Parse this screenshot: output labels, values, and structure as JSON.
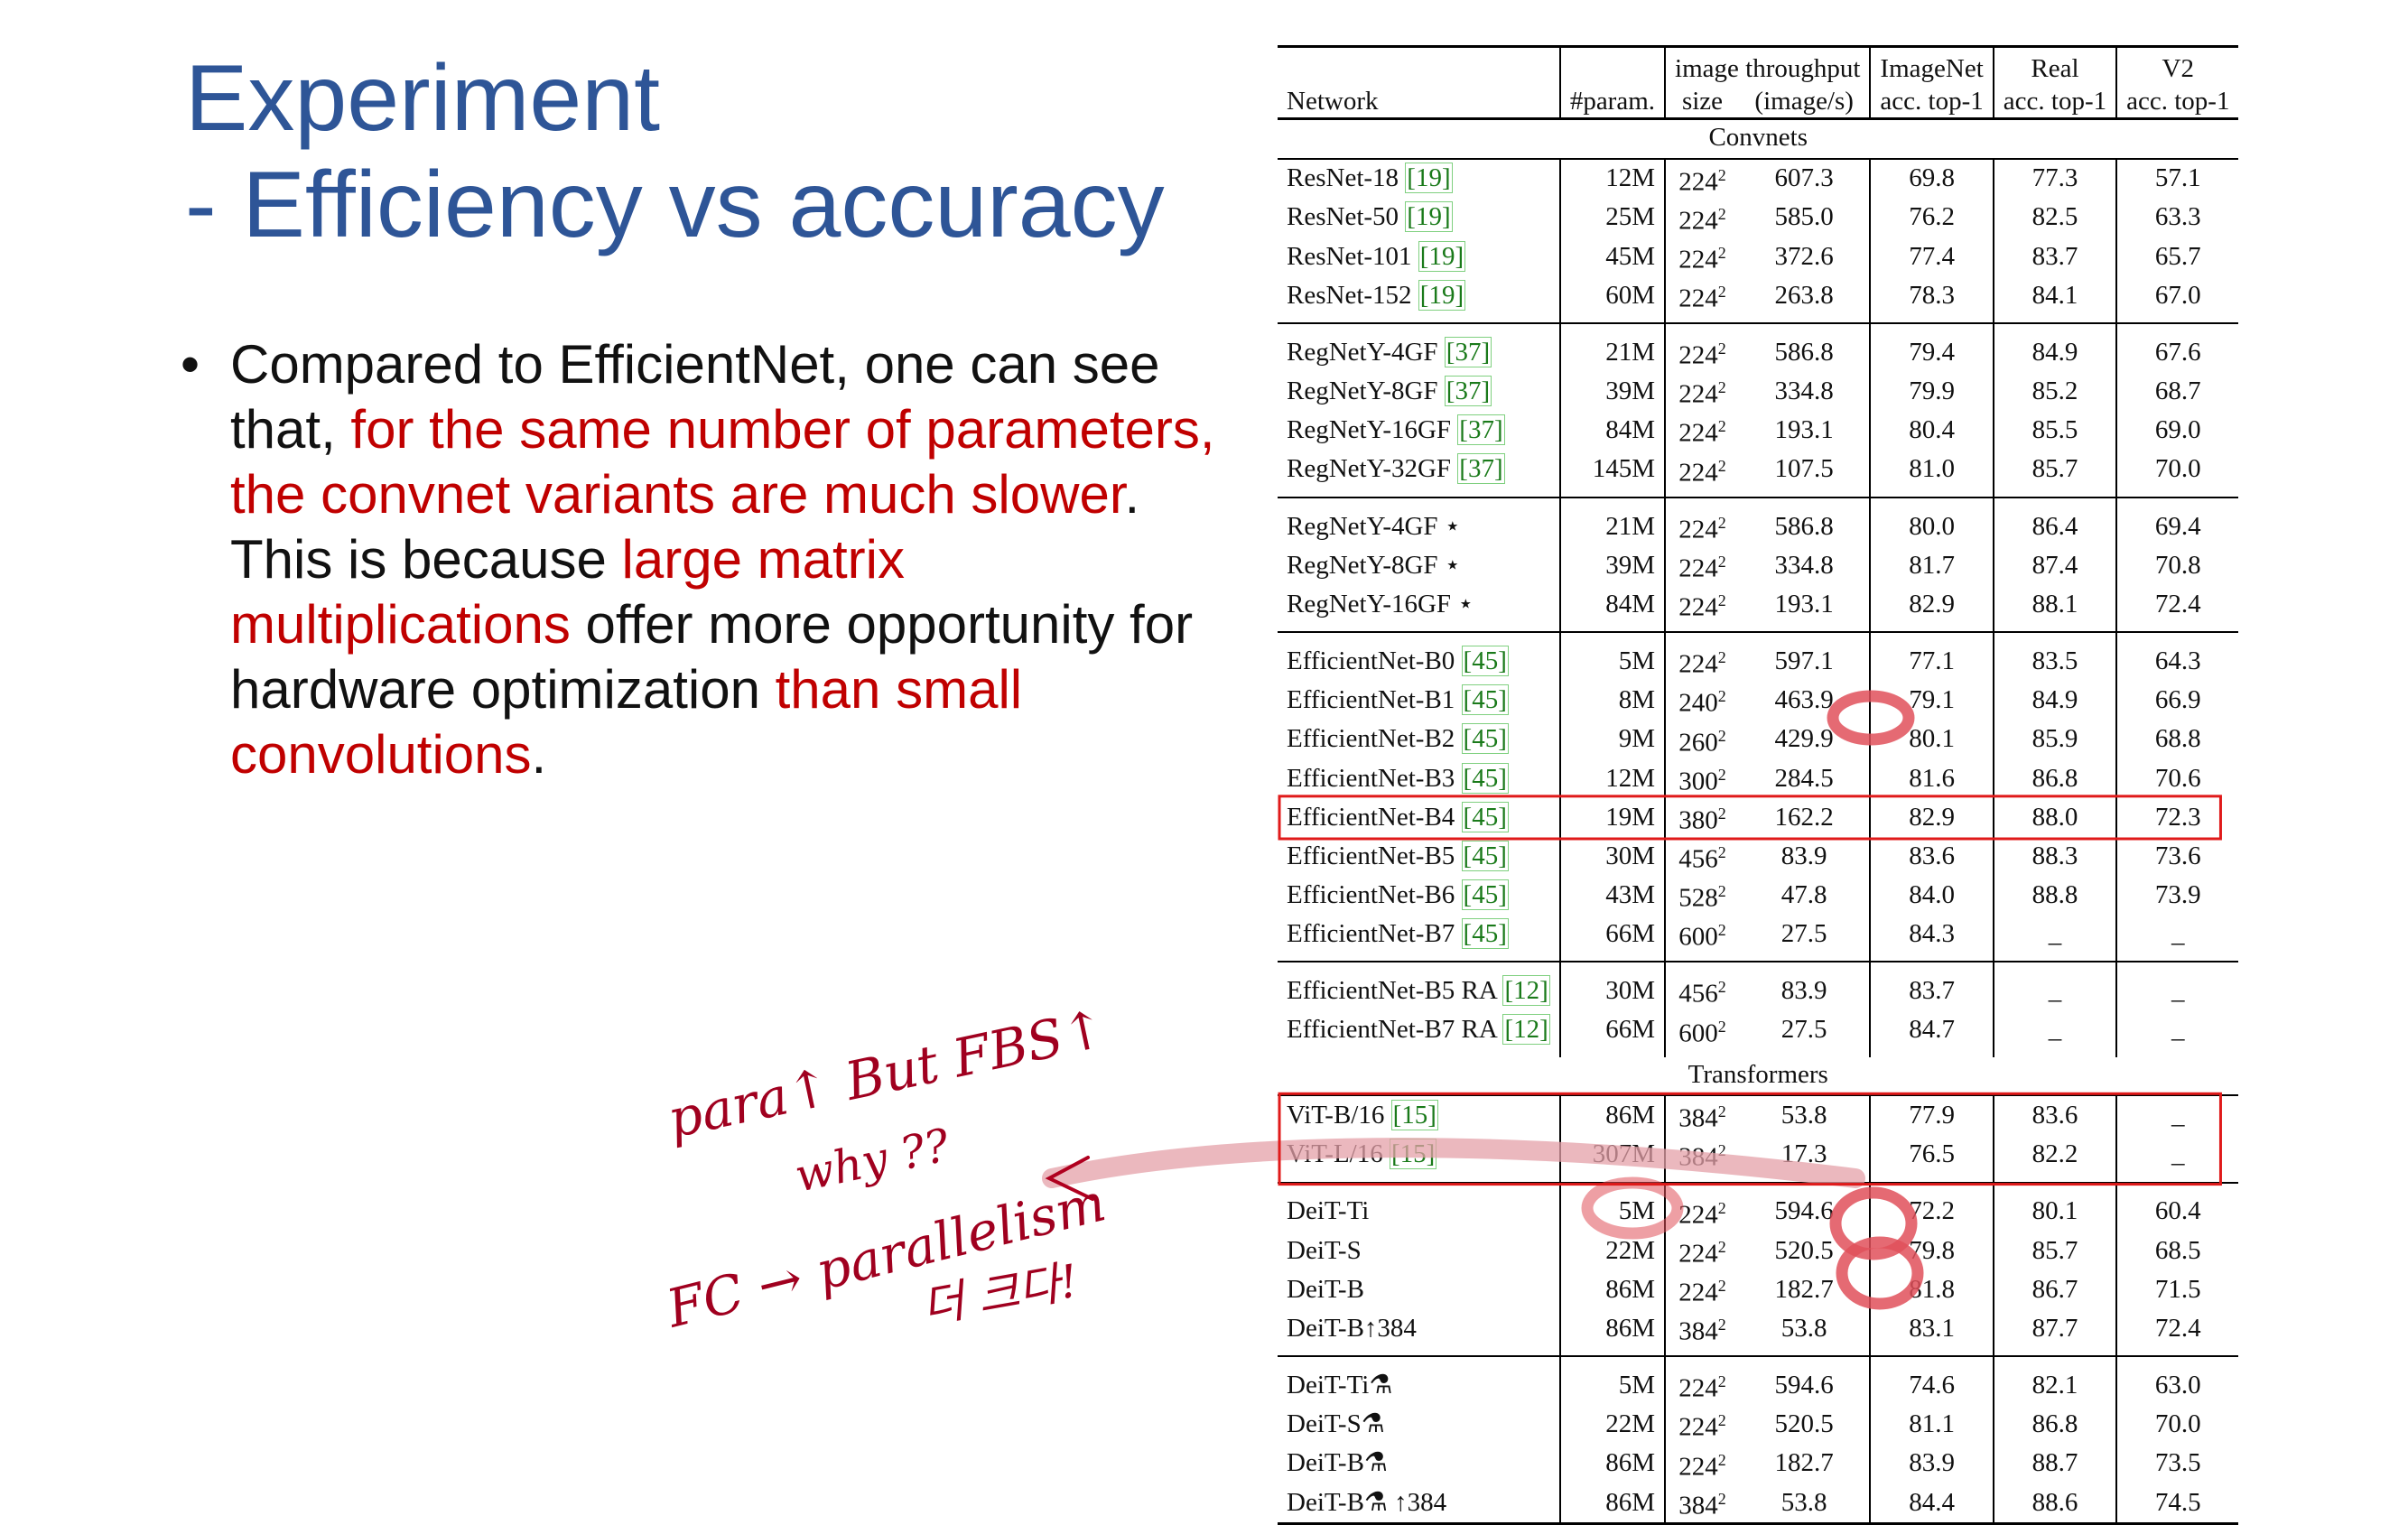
{
  "title": {
    "line1": "Experiment",
    "line2": "- Efficiency vs accuracy"
  },
  "bullet": {
    "marker": "•",
    "t1": "Compared to EfficientNet, one can see that, ",
    "r1": "for the same number of parameters, the convnet variants are much slower",
    "t2": ". This is because ",
    "r2": "large matrix multiplications",
    "t3": " offer more opportunity for hardware optimization ",
    "r3": "than small convolutions",
    "t4": "."
  },
  "table": {
    "headers": {
      "network": "Network",
      "param": "#param.",
      "throughput_group": "image throughput",
      "size": "size",
      "throughput": "(image/s)",
      "imagenet_1": "ImageNet",
      "imagenet_2": "acc. top-1",
      "real_1": "Real",
      "real_2": "acc. top-1",
      "v2_1": "V2",
      "v2_2": "acc. top-1"
    },
    "sections": {
      "convnets": "Convnets",
      "transformers": "Transformers"
    },
    "rows": [
      {
        "name": "ResNet-18",
        "ref": "[19]",
        "param": "12M",
        "size": "224",
        "exp": "2",
        "thr": "607.3",
        "imnet": "69.8",
        "real": "77.3",
        "v2": "57.1"
      },
      {
        "name": "ResNet-50",
        "ref": "[19]",
        "param": "25M",
        "size": "224",
        "exp": "2",
        "thr": "585.0",
        "imnet": "76.2",
        "real": "82.5",
        "v2": "63.3"
      },
      {
        "name": "ResNet-101",
        "ref": "[19]",
        "param": "45M",
        "size": "224",
        "exp": "2",
        "thr": "372.6",
        "imnet": "77.4",
        "real": "83.7",
        "v2": "65.7"
      },
      {
        "name": "ResNet-152",
        "ref": "[19]",
        "param": "60M",
        "size": "224",
        "exp": "2",
        "thr": "263.8",
        "imnet": "78.3",
        "real": "84.1",
        "v2": "67.0"
      },
      {
        "name": "RegNetY-4GF",
        "ref": "[37]",
        "param": "21M",
        "size": "224",
        "exp": "2",
        "thr": "586.8",
        "imnet": "79.4",
        "real": "84.9",
        "v2": "67.6"
      },
      {
        "name": "RegNetY-8GF",
        "ref": "[37]",
        "param": "39M",
        "size": "224",
        "exp": "2",
        "thr": "334.8",
        "imnet": "79.9",
        "real": "85.2",
        "v2": "68.7"
      },
      {
        "name": "RegNetY-16GF",
        "ref": "[37]",
        "param": "84M",
        "size": "224",
        "exp": "2",
        "thr": "193.1",
        "imnet": "80.4",
        "real": "85.5",
        "v2": "69.0"
      },
      {
        "name": "RegNetY-32GF",
        "ref": "[37]",
        "param": "145M",
        "size": "224",
        "exp": "2",
        "thr": "107.5",
        "imnet": "81.0",
        "real": "85.7",
        "v2": "70.0"
      },
      {
        "name": "RegNetY-4GF ⋆",
        "ref": "",
        "param": "21M",
        "size": "224",
        "exp": "2",
        "thr": "586.8",
        "imnet": "80.0",
        "real": "86.4",
        "v2": "69.4"
      },
      {
        "name": "RegNetY-8GF ⋆",
        "ref": "",
        "param": "39M",
        "size": "224",
        "exp": "2",
        "thr": "334.8",
        "imnet": "81.7",
        "real": "87.4",
        "v2": "70.8"
      },
      {
        "name": "RegNetY-16GF ⋆",
        "ref": "",
        "param": "84M",
        "size": "224",
        "exp": "2",
        "thr": "193.1",
        "imnet": "82.9",
        "real": "88.1",
        "v2": "72.4"
      },
      {
        "name": "EfficientNet-B0",
        "ref": "[45]",
        "param": "5M",
        "size": "224",
        "exp": "2",
        "thr": "597.1",
        "imnet": "77.1",
        "real": "83.5",
        "v2": "64.3"
      },
      {
        "name": "EfficientNet-B1",
        "ref": "[45]",
        "param": "8M",
        "size": "240",
        "exp": "2",
        "thr": "463.9",
        "imnet": "79.1",
        "real": "84.9",
        "v2": "66.9"
      },
      {
        "name": "EfficientNet-B2",
        "ref": "[45]",
        "param": "9M",
        "size": "260",
        "exp": "2",
        "thr": "429.9",
        "imnet": "80.1",
        "real": "85.9",
        "v2": "68.8"
      },
      {
        "name": "EfficientNet-B3",
        "ref": "[45]",
        "param": "12M",
        "size": "300",
        "exp": "2",
        "thr": "284.5",
        "imnet": "81.6",
        "real": "86.8",
        "v2": "70.6"
      },
      {
        "name": "EfficientNet-B4",
        "ref": "[45]",
        "param": "19M",
        "size": "380",
        "exp": "2",
        "thr": "162.2",
        "imnet": "82.9",
        "real": "88.0",
        "v2": "72.3"
      },
      {
        "name": "EfficientNet-B5",
        "ref": "[45]",
        "param": "30M",
        "size": "456",
        "exp": "2",
        "thr": "83.9",
        "imnet": "83.6",
        "real": "88.3",
        "v2": "73.6"
      },
      {
        "name": "EfficientNet-B6",
        "ref": "[45]",
        "param": "43M",
        "size": "528",
        "exp": "2",
        "thr": "47.8",
        "imnet": "84.0",
        "real": "88.8",
        "v2": "73.9"
      },
      {
        "name": "EfficientNet-B7",
        "ref": "[45]",
        "param": "66M",
        "size": "600",
        "exp": "2",
        "thr": "27.5",
        "imnet": "84.3",
        "real": "_",
        "v2": "_"
      },
      {
        "name": "EfficientNet-B5 RA",
        "ref": "[12]",
        "param": "30M",
        "size": "456",
        "exp": "2",
        "thr": "83.9",
        "imnet": "83.7",
        "real": "_",
        "v2": "_"
      },
      {
        "name": "EfficientNet-B7 RA",
        "ref": "[12]",
        "param": "66M",
        "size": "600",
        "exp": "2",
        "thr": "27.5",
        "imnet": "84.7",
        "real": "_",
        "v2": "_"
      },
      {
        "name": "ViT-B/16",
        "ref": "[15]",
        "param": "86M",
        "size": "384",
        "exp": "2",
        "thr": "53.8",
        "imnet": "77.9",
        "real": "83.6",
        "v2": "_"
      },
      {
        "name": "ViT-L/16",
        "ref": "[15]",
        "param": "307M",
        "size": "384",
        "exp": "2",
        "thr": "17.3",
        "imnet": "76.5",
        "real": "82.2",
        "v2": "_"
      },
      {
        "name": "DeiT-Ti",
        "ref": "",
        "param": "5M",
        "size": "224",
        "exp": "2",
        "thr": "594.6",
        "imnet": "72.2",
        "real": "80.1",
        "v2": "60.4"
      },
      {
        "name": "DeiT-S",
        "ref": "",
        "param": "22M",
        "size": "224",
        "exp": "2",
        "thr": "520.5",
        "imnet": "79.8",
        "real": "85.7",
        "v2": "68.5"
      },
      {
        "name": "DeiT-B",
        "ref": "",
        "param": "86M",
        "size": "224",
        "exp": "2",
        "thr": "182.7",
        "imnet": "81.8",
        "real": "86.7",
        "v2": "71.5"
      },
      {
        "name": "DeiT-B↑384",
        "ref": "",
        "param": "86M",
        "size": "384",
        "exp": "2",
        "thr": "53.8",
        "imnet": "83.1",
        "real": "87.7",
        "v2": "72.4"
      },
      {
        "name": "DeiT-Ti⚗",
        "ref": "",
        "param": "5M",
        "size": "224",
        "exp": "2",
        "thr": "594.6",
        "imnet": "74.6",
        "real": "82.1",
        "v2": "63.0"
      },
      {
        "name": "DeiT-S⚗",
        "ref": "",
        "param": "22M",
        "size": "224",
        "exp": "2",
        "thr": "520.5",
        "imnet": "81.1",
        "real": "86.8",
        "v2": "70.0"
      },
      {
        "name": "DeiT-B⚗",
        "ref": "",
        "param": "86M",
        "size": "224",
        "exp": "2",
        "thr": "182.7",
        "imnet": "83.9",
        "real": "88.7",
        "v2": "73.5"
      },
      {
        "name": "DeiT-B⚗ ↑384",
        "ref": "",
        "param": "86M",
        "size": "384",
        "exp": "2",
        "thr": "53.8",
        "imnet": "84.4",
        "real": "88.6",
        "v2": "74.5"
      }
    ]
  },
  "annotations": {
    "line1": "para↑ But FBS↑",
    "line2": "why ??",
    "line3": "FC → parallelism",
    "line4": "더 크다!"
  },
  "colors": {
    "title": "#2e5597",
    "emphasis": "#c00000",
    "highlight_box": "#e01a1a",
    "handwriting": "#a0001f",
    "ref_green": "#1a7a1a"
  }
}
